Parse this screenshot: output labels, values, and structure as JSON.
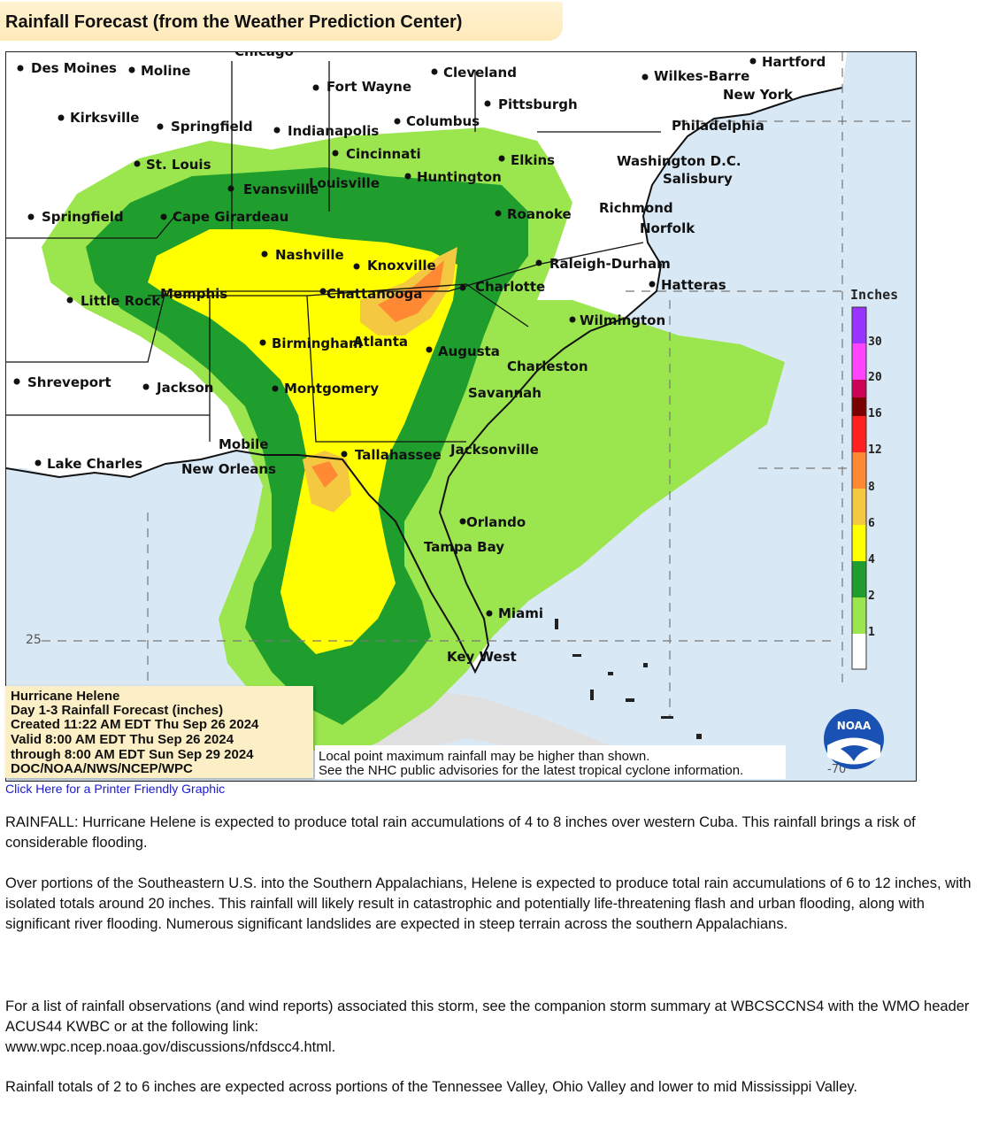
{
  "page": {
    "title": "Rainfall Forecast (from the Weather Prediction Center)",
    "printer_link": "Click Here for a Printer Friendly Graphic"
  },
  "info_box": {
    "line1": "Hurricane Helene",
    "line2": "Day 1-3 Rainfall Forecast (inches)",
    "line3": "Created 11:22 AM EDT Thu Sep 26 2024",
    "line4": "Valid 8:00 AM EDT Thu Sep 26 2024",
    "line5": "through 8:00 AM EDT Sun Sep 29 2024",
    "line6": "DOC/NOAA/NWS/NCEP/WPC"
  },
  "disclaimer": {
    "line1": "Local point maximum rainfall may be higher than shown.",
    "line2": "See the NHC public advisories for the latest tropical cyclone information."
  },
  "legend": {
    "title": "Inches",
    "levels": [
      {
        "label": "30",
        "color": "#9933ff"
      },
      {
        "label": "20",
        "color": "#ff44ff"
      },
      {
        "label": "16",
        "color": "#cc0055"
      },
      {
        "label": "12",
        "color": "#7a0000"
      },
      {
        "label": "8",
        "color": "#ff2020"
      },
      {
        "label": "6",
        "color": "#ff8a33"
      },
      {
        "label": "4",
        "color": "#f5c842"
      },
      {
        "label": "2",
        "color": "#ffff00"
      },
      {
        "label": "1",
        "color": "#1f9e2e"
      },
      {
        "label": "",
        "color": "#9be64e"
      }
    ],
    "lowest_color": "#ffffff"
  },
  "map": {
    "lat_label": "25",
    "lon_label": "-70",
    "logo_text": "NOAA",
    "cities": [
      {
        "name": "Des Moines"
      },
      {
        "name": "Moline"
      },
      {
        "name": "Chicago"
      },
      {
        "name": "Fort Wayne"
      },
      {
        "name": "Cleveland"
      },
      {
        "name": "Wilkes-Barre"
      },
      {
        "name": "Hartford"
      },
      {
        "name": "New York"
      },
      {
        "name": "Pittsburgh"
      },
      {
        "name": "Kirksville"
      },
      {
        "name": "Springfield"
      },
      {
        "name": "Indianapolis"
      },
      {
        "name": "Columbus"
      },
      {
        "name": "Philadelphia"
      },
      {
        "name": "Cincinnati"
      },
      {
        "name": "St. Louis"
      },
      {
        "name": "Elkins"
      },
      {
        "name": "Washington D.C."
      },
      {
        "name": "Salisbury"
      },
      {
        "name": "Huntington"
      },
      {
        "name": "Evansville"
      },
      {
        "name": "Louisville"
      },
      {
        "name": "Richmond"
      },
      {
        "name": "Springfield"
      },
      {
        "name": "Cape Girardeau"
      },
      {
        "name": "Roanoke"
      },
      {
        "name": "Norfolk"
      },
      {
        "name": "Nashville"
      },
      {
        "name": "Knoxville"
      },
      {
        "name": "Raleigh-Durham"
      },
      {
        "name": "Charlotte"
      },
      {
        "name": "Hatteras"
      },
      {
        "name": "Little Rock"
      },
      {
        "name": "Memphis"
      },
      {
        "name": "Chattanooga"
      },
      {
        "name": "Wilmington"
      },
      {
        "name": "Birmingham"
      },
      {
        "name": "Atlanta"
      },
      {
        "name": "Augusta"
      },
      {
        "name": "Charleston"
      },
      {
        "name": "Shreveport"
      },
      {
        "name": "Jackson"
      },
      {
        "name": "Montgomery"
      },
      {
        "name": "Savannah"
      },
      {
        "name": "Mobile"
      },
      {
        "name": "Tallahassee"
      },
      {
        "name": "Jacksonville"
      },
      {
        "name": "Lake Charles"
      },
      {
        "name": "New Orleans"
      },
      {
        "name": "Orlando"
      },
      {
        "name": "Tampa Bay"
      },
      {
        "name": "Miami"
      },
      {
        "name": "Key West"
      }
    ]
  },
  "paragraphs": {
    "p1": "RAINFALL: Hurricane Helene is expected to produce total rain accumulations of 4 to 8 inches over western Cuba. This rainfall brings a risk of considerable flooding.",
    "p2": "Over portions of the Southeastern U.S. into the Southern Appalachians, Helene is expected to produce total rain accumulations of 6 to 12 inches, with isolated totals around 20 inches. This rainfall will likely result in catastrophic and potentially life-threatening flash and urban flooding, along with significant river flooding. Numerous significant landslides are expected in steep terrain across the southern Appalachians.",
    "p3": "For a list of rainfall observations (and wind reports) associated this storm, see the companion storm summary at WBCSCCNS4 with the WMO header ACUS44 KWBC or at the following link:",
    "p3_link": "www.wpc.ncep.noaa.gov/discussions/nfdscc4.html.",
    "p4": "Rainfall totals of 2 to 6 inches are expected across portions of the Tennessee Valley, Ohio Valley and lower to mid Mississippi Valley."
  }
}
